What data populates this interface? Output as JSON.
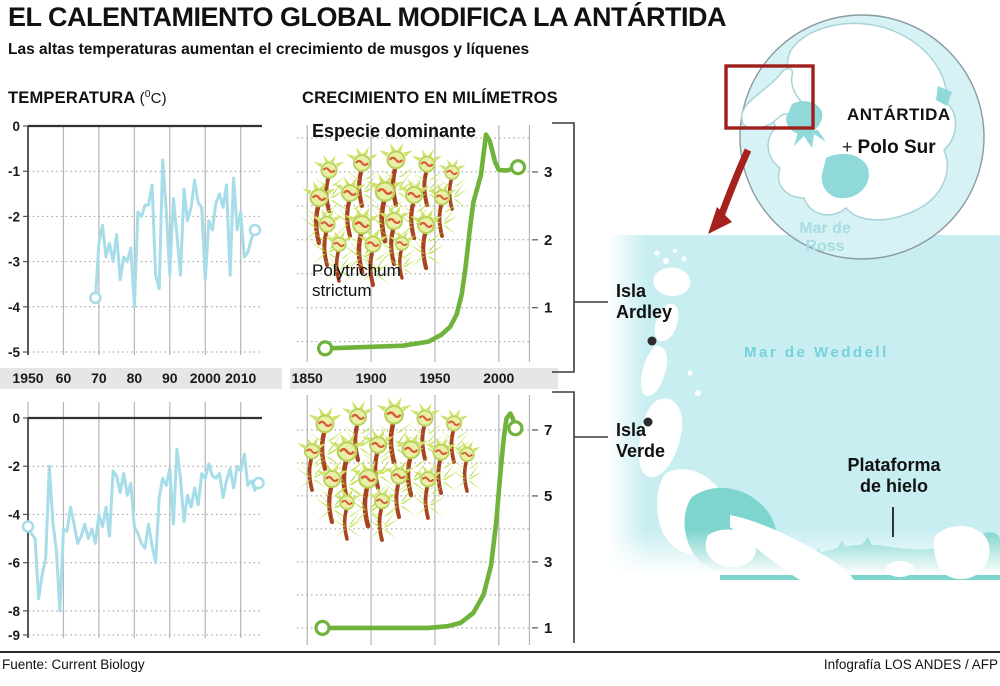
{
  "header": {
    "title": "EL CALENTAMIENTO GLOBAL MODIFICA LA ANTÁRTIDA",
    "subtitle": "Las altas temperaturas aumentan el crecimiento de musgos y líquenes"
  },
  "sections": {
    "temperature": {
      "label": "TEMPERATURA",
      "unit_prefix": "(",
      "unit_sup": "0",
      "unit_suffix": "C)"
    },
    "growth": {
      "label": "CRECIMIENTO EN MILÍMETROS",
      "annotation_title": "Especie dominante",
      "species": "Polytrichum\nstrictum"
    }
  },
  "chart_data": [
    {
      "id": "temp-upper",
      "type": "line",
      "color": "#a7dde9",
      "stroke_width": 3,
      "marker_r": 5,
      "marker_sw": 2.6,
      "zero_axis": true,
      "ytick_side": "left",
      "endpoint_markers": "open-circle",
      "x_start": 1969,
      "x_step": 1,
      "values": [
        -3.8,
        -2.6,
        -2.2,
        -2.9,
        -2.6,
        -3.0,
        -2.4,
        -3.4,
        -2.9,
        -3.0,
        -2.7,
        -4.0,
        -1.9,
        -2.0,
        -1.75,
        -1.75,
        -1.3,
        -3.3,
        -3.6,
        -0.75,
        -1.9,
        -3.3,
        -1.6,
        -2.4,
        -3.3,
        -1.4,
        -2.1,
        -1.8,
        -1.2,
        -1.7,
        -1.8,
        -3.4,
        -2.1,
        -2.3,
        -1.7,
        -1.5,
        -1.8,
        -1.3,
        -3.3,
        -1.15,
        -2.3,
        -1.9,
        -2.9,
        -2.8,
        -2.5,
        -2.3
      ],
      "xlim": [
        1950,
        2016
      ],
      "ylim": [
        -5,
        0
      ],
      "xgrid": [
        1950,
        1960,
        1970,
        1980,
        1990,
        2000,
        2010
      ],
      "ygrid": [
        -1,
        -2,
        -3,
        -4,
        -5
      ],
      "yticks": [
        {
          "v": 0,
          "label": "0"
        },
        {
          "v": -1,
          "label": "-1"
        },
        {
          "v": -2,
          "label": "-2"
        },
        {
          "v": -3,
          "label": "-3"
        },
        {
          "v": -4,
          "label": "-4"
        },
        {
          "v": -5,
          "label": "-5"
        }
      ],
      "x_labels": [
        {
          "v": 1950,
          "label": "1950"
        },
        {
          "v": 1960,
          "label": "60"
        },
        {
          "v": 1970,
          "label": "70"
        },
        {
          "v": 1980,
          "label": "80"
        },
        {
          "v": 1990,
          "label": "90"
        },
        {
          "v": 2000,
          "label": "2000"
        },
        {
          "v": 2010,
          "label": "2010"
        }
      ]
    },
    {
      "id": "temp-lower",
      "type": "line",
      "color": "#a7dde9",
      "stroke_width": 3,
      "marker_r": 5,
      "marker_sw": 2.6,
      "zero_axis": true,
      "ytick_side": "left",
      "endpoint_markers": "open-circle",
      "x_start": 1950,
      "x_step": 1,
      "values": [
        -4.5,
        -4.8,
        -5.0,
        -7.5,
        -6.5,
        -5.8,
        -2.0,
        -4.3,
        -5.5,
        -8.0,
        -4.6,
        -4.7,
        -3.7,
        -4.4,
        -5.2,
        -4.9,
        -4.4,
        -5.0,
        -4.6,
        -5.2,
        -4.0,
        -4.5,
        -3.7,
        -4.9,
        -2.2,
        -2.4,
        -3.1,
        -2.3,
        -3.2,
        -2.7,
        -4.5,
        -4.8,
        -5.2,
        -5.4,
        -4.4,
        -5.3,
        -6.0,
        -3.3,
        -2.5,
        -2.8,
        -2.1,
        -4.4,
        -1.3,
        -2.5,
        -4.3,
        -3.2,
        -3.7,
        -2.9,
        -3.6,
        -2.3,
        -2.5,
        -1.9,
        -2.4,
        -2.5,
        -2.3,
        -3.3,
        -2.6,
        -2.1,
        -2.9,
        -2.0,
        -2.2,
        -1.5,
        -2.8,
        -2.6,
        -3.0,
        -2.7
      ],
      "xlim": [
        1950,
        2016
      ],
      "ylim": [
        -9,
        0
      ],
      "xgrid": [
        1950,
        1960,
        1970,
        1980,
        1990,
        2000,
        2010
      ],
      "ygrid": [
        -2,
        -4,
        -6,
        -8,
        -9
      ],
      "yticks": [
        {
          "v": 0,
          "label": "0"
        },
        {
          "v": -2,
          "label": "-2"
        },
        {
          "v": -4,
          "label": "-4"
        },
        {
          "v": -6,
          "label": "-6"
        },
        {
          "v": -8,
          "label": "-8"
        },
        {
          "v": -9,
          "label": "-9"
        }
      ],
      "x_labels": []
    },
    {
      "id": "growth-upper",
      "type": "line",
      "color": "#6fb33c",
      "stroke_width": 4.6,
      "marker_r": 6.5,
      "marker_sw": 3.2,
      "zero_axis": false,
      "ytick_side": "right",
      "endpoint_markers": "open-circle",
      "points": [
        [
          1864,
          0.4
        ],
        [
          1895,
          0.42
        ],
        [
          1925,
          0.44
        ],
        [
          1945,
          0.5
        ],
        [
          1955,
          0.6
        ],
        [
          1962,
          0.72
        ],
        [
          1967,
          0.9
        ],
        [
          1971,
          1.2
        ],
        [
          1974,
          1.6
        ],
        [
          1977,
          2.1
        ],
        [
          1980,
          2.55
        ],
        [
          1983,
          2.75
        ],
        [
          1986,
          2.95
        ],
        [
          1990,
          3.55
        ],
        [
          1993,
          3.45
        ],
        [
          1997,
          3.15
        ],
        [
          2000,
          3.03
        ],
        [
          2006,
          3.02
        ],
        [
          2015,
          3.07
        ]
      ],
      "xlim": [
        1842,
        2026
      ],
      "ylim": [
        0.2,
        3.75
      ],
      "xgrid": [
        1850,
        1900,
        1950,
        2000,
        2024
      ],
      "ygrid": [
        0.5,
        1,
        1.5,
        2,
        2.5,
        3,
        3.5
      ],
      "yticks": [
        {
          "v": 1,
          "label": "1"
        },
        {
          "v": 2,
          "label": "2"
        },
        {
          "v": 3,
          "label": "3"
        }
      ],
      "x_labels": [
        {
          "v": 1850,
          "label": "1850"
        },
        {
          "v": 1900,
          "label": "1900"
        },
        {
          "v": 1950,
          "label": "1950"
        },
        {
          "v": 2000,
          "label": "2000"
        }
      ]
    },
    {
      "id": "growth-lower",
      "type": "line",
      "color": "#6fb33c",
      "stroke_width": 4.6,
      "marker_r": 6.5,
      "marker_sw": 3.2,
      "zero_axis": false,
      "ytick_side": "right",
      "endpoint_markers": "open-circle",
      "points": [
        [
          1862,
          1.0
        ],
        [
          1900,
          1.0
        ],
        [
          1945,
          1.0
        ],
        [
          1960,
          1.05
        ],
        [
          1970,
          1.15
        ],
        [
          1980,
          1.45
        ],
        [
          1988,
          2.0
        ],
        [
          1994,
          2.9
        ],
        [
          1998,
          4.2
        ],
        [
          2001,
          5.6
        ],
        [
          2004,
          6.8
        ],
        [
          2006,
          7.35
        ],
        [
          2009,
          7.5
        ],
        [
          2011,
          7.35
        ],
        [
          2013,
          7.05
        ]
      ],
      "xlim": [
        1842,
        2026
      ],
      "ylim": [
        0.45,
        8.0
      ],
      "xgrid": [
        1850,
        1900,
        1950,
        2000,
        2024
      ],
      "ygrid": [
        1,
        2,
        3,
        4,
        5,
        6,
        7
      ],
      "yticks": [
        {
          "v": 1,
          "label": "1"
        },
        {
          "v": 3,
          "label": "3"
        },
        {
          "v": 5,
          "label": "5"
        },
        {
          "v": 7,
          "label": "7"
        }
      ],
      "x_labels": []
    }
  ],
  "map": {
    "inset": {
      "continent": "ANTÁRTIDA",
      "pole_marker": "+",
      "pole": "Polo Sur",
      "sea": "Mar de\nRoss"
    },
    "detail": {
      "isla_ardley": "Isla\nArdley",
      "isla_verde": "Isla\nVerde",
      "sea": "Mar de Weddell",
      "ice_shelf": "Plataforma\nde hielo"
    }
  },
  "footer": {
    "source": "Fuente: Current Biology",
    "credit": "Infografía LOS ANDES / AFP"
  },
  "colors": {
    "temperature_line": "#a7dde9",
    "growth_line": "#6fb33c",
    "sea_fill": "#c9eef2",
    "land_teal": "#7ed5ce",
    "accent_red": "#a6201d",
    "strip_gray": "#e6e6e6"
  }
}
